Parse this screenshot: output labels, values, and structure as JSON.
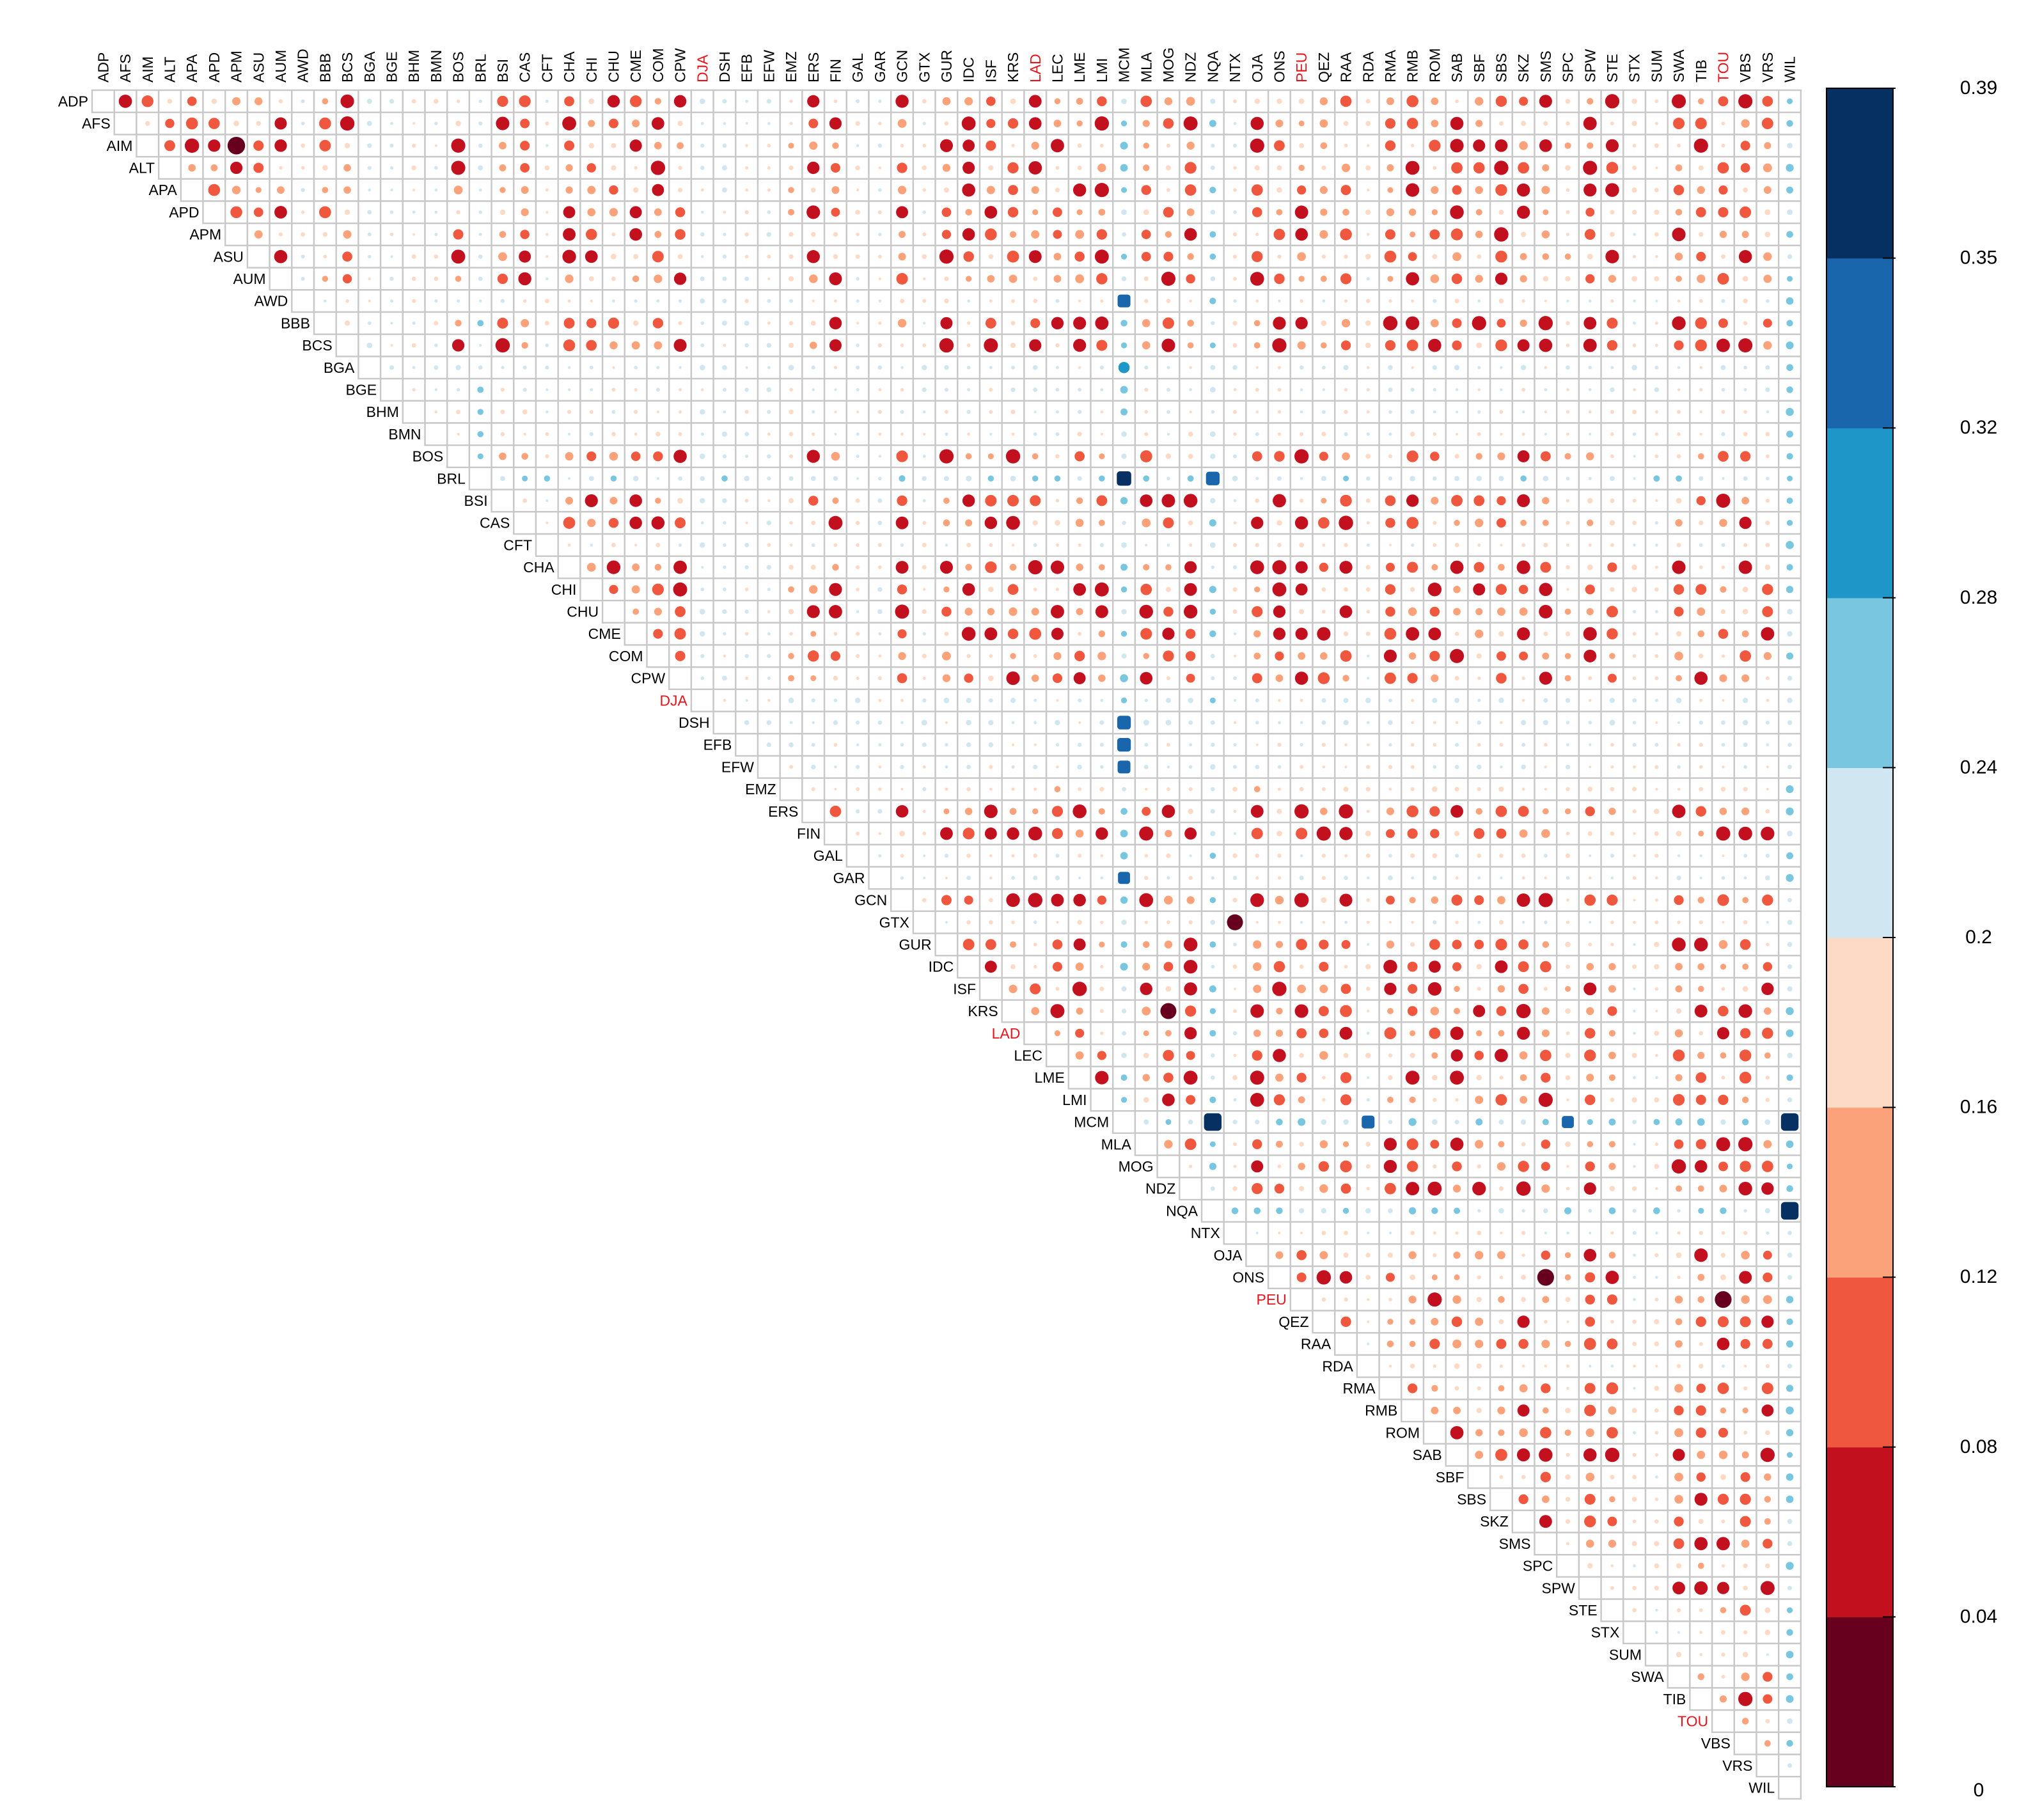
{
  "chart_data": {
    "type": "heatmap",
    "subtype": "upper-triangular correlation-style matrix, circle size and color encode value",
    "labels": [
      "ADP",
      "AFS",
      "AIM",
      "ALT",
      "APA",
      "APD",
      "APM",
      "ASU",
      "AUM",
      "AWD",
      "BBB",
      "BCS",
      "BGA",
      "BGE",
      "BHM",
      "BMN",
      "BOS",
      "BRL",
      "BSI",
      "CAS",
      "CFT",
      "CHA",
      "CHI",
      "CHU",
      "CME",
      "COM",
      "CPW",
      "DJA",
      "DSH",
      "EFB",
      "EFW",
      "EMZ",
      "ERS",
      "FIN",
      "GAL",
      "GAR",
      "GCN",
      "GTX",
      "GUR",
      "IDC",
      "ISF",
      "KRS",
      "LAD",
      "LEC",
      "LME",
      "LMI",
      "MCM",
      "MLA",
      "MOG",
      "NDZ",
      "NQA",
      "NTX",
      "OJA",
      "ONS",
      "PEU",
      "QEZ",
      "RAA",
      "RDA",
      "RMA",
      "RMB",
      "ROM",
      "SAB",
      "SBF",
      "SBS",
      "SKZ",
      "SMS",
      "SPC",
      "SPW",
      "STE",
      "STX",
      "SUM",
      "SWA",
      "TIB",
      "TOU",
      "VBS",
      "VRS",
      "WIL"
    ],
    "highlighted_labels": [
      "DJA",
      "LAD",
      "PEU",
      "TOU"
    ],
    "highlight_color": "#e8141c",
    "label_color": "#000000",
    "diagonal": "empty",
    "value_range": [
      0,
      0.39
    ],
    "row_baselines": {
      "AWD": 0.19,
      "BGA": 0.21,
      "BGE": 0.2,
      "BHM": 0.19,
      "BMN": 0.19,
      "BRL": 0.22,
      "CFT": 0.19,
      "DJA": 0.21,
      "DSH": 0.21,
      "EFB": 0.2,
      "EFW": 0.2,
      "EMZ": 0.17,
      "GAL": 0.19,
      "GAR": 0.2,
      "GTX": 0.19,
      "MCM": 0.24,
      "NQA": 0.23,
      "NTX": 0.19,
      "RDA": 0.18,
      "SPC": 0.17,
      "STX": 0.18,
      "SUM": 0.18,
      "WIL": 0.24
    },
    "notable_cells": [
      {
        "row": "MCM",
        "col": "NQA",
        "value": 0.39
      },
      {
        "row": "MCM",
        "col": "WIL",
        "value": 0.39
      },
      {
        "row": "NQA",
        "col": "WIL",
        "value": 0.39
      },
      {
        "row": "BRL",
        "col": "MCM",
        "value": 0.35
      },
      {
        "row": "BRL",
        "col": "NQA",
        "value": 0.34
      },
      {
        "row": "MCM",
        "col": "RDA",
        "value": 0.33
      },
      {
        "row": "MCM",
        "col": "SPC",
        "value": 0.32
      },
      {
        "row": "DSH",
        "col": "MCM",
        "value": 0.34
      },
      {
        "row": "EFB",
        "col": "MCM",
        "value": 0.34
      },
      {
        "row": "EFW",
        "col": "MCM",
        "value": 0.33
      },
      {
        "row": "AWD",
        "col": "MCM",
        "value": 0.33
      },
      {
        "row": "BGA",
        "col": "MCM",
        "value": 0.31
      },
      {
        "row": "GAR",
        "col": "MCM",
        "value": 0.32
      },
      {
        "row": "PEU",
        "col": "TOU",
        "value": 0.02
      },
      {
        "row": "AIM",
        "col": "APM",
        "value": 0.01
      },
      {
        "row": "ONS",
        "col": "SMS",
        "value": 0.02
      },
      {
        "row": "GTX",
        "col": "NTX",
        "value": 0.03
      },
      {
        "row": "KRS",
        "col": "MOG",
        "value": 0.03
      }
    ],
    "legend": {
      "type": "colorbar",
      "placement": "right",
      "ticks": [
        "0",
        "0.04",
        "0.08",
        "0.12",
        "0.16",
        "0.2",
        "0.24",
        "0.28",
        "0.32",
        "0.35",
        "0.39"
      ],
      "tick_values": [
        0,
        0.04,
        0.08,
        0.12,
        0.16,
        0.2,
        0.24,
        0.28,
        0.32,
        0.35,
        0.39
      ],
      "colors": [
        "#67001f",
        "#c2101f",
        "#f0573f",
        "#fba27a",
        "#fddac5",
        "#d0e6f0",
        "#79c6e0",
        "#1f96c8",
        "#1a66ad",
        "#053061"
      ]
    }
  }
}
